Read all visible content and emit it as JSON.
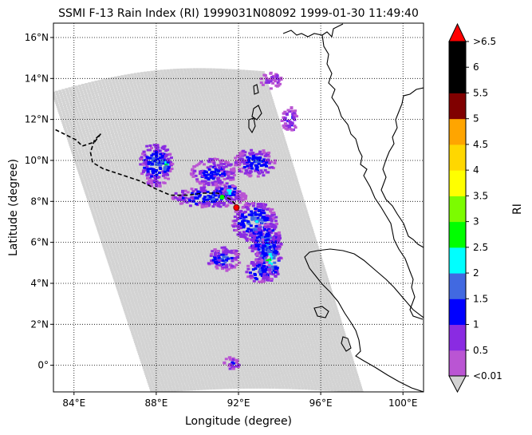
{
  "figure": {
    "title": "SSMI F-13 Rain Index (RI) 1999031N08092 1999-01-30 11:49:40",
    "xlabel": "Longitude (degree)",
    "ylabel": "Latitude (degree)"
  },
  "chart_data": {
    "type": "map",
    "xlim": [
      83,
      101
    ],
    "ylim": [
      -1.3,
      16.7
    ],
    "grid": true,
    "x_ticks": [
      {
        "value": 84,
        "label": "84°E"
      },
      {
        "value": 88,
        "label": "88°E"
      },
      {
        "value": 92,
        "label": "92°E"
      },
      {
        "value": 96,
        "label": "96°E"
      },
      {
        "value": 100,
        "label": "100°E"
      }
    ],
    "y_ticks": [
      {
        "value": 0,
        "label": "0°"
      },
      {
        "value": 2,
        "label": "2°N"
      },
      {
        "value": 4,
        "label": "4°N"
      },
      {
        "value": 6,
        "label": "6°N"
      },
      {
        "value": 8,
        "label": "8°N"
      },
      {
        "value": 10,
        "label": "10°N"
      },
      {
        "value": 12,
        "label": "12°N"
      },
      {
        "value": 14,
        "label": "14°N"
      },
      {
        "value": 16,
        "label": "16°N"
      }
    ],
    "storm_track": [
      [
        83.1,
        11.5
      ],
      [
        84.1,
        11.0
      ],
      [
        84.4,
        10.7
      ],
      [
        85.0,
        10.9
      ],
      [
        85.3,
        11.3
      ],
      [
        85.0,
        11.0
      ],
      [
        84.8,
        10.4
      ],
      [
        84.9,
        9.9
      ],
      [
        85.4,
        9.6
      ],
      [
        86.3,
        9.3
      ],
      [
        87.2,
        9.0
      ],
      [
        88.0,
        8.6
      ],
      [
        88.7,
        8.3
      ],
      [
        89.5,
        8.3
      ],
      [
        90.3,
        8.4
      ],
      [
        91.0,
        8.4
      ],
      [
        91.6,
        8.1
      ],
      [
        92.0,
        7.7
      ]
    ],
    "storm_center": {
      "lon": 91.9,
      "lat": 7.7
    },
    "track_point": {
      "lon": 91.2,
      "lat": 8.2
    },
    "swath": {
      "top_left": [
        83.0,
        13.3
      ],
      "top_right": [
        93.2,
        14.3
      ],
      "bottom_right": [
        98.0,
        -1.3
      ],
      "bottom_left": [
        87.8,
        -1.3
      ],
      "background_color": "#d3d3d3"
    },
    "rain_clusters": [
      {
        "lon": 88.0,
        "lat": 9.8,
        "rx": 0.8,
        "ry": 1.1,
        "level": 1.5
      },
      {
        "lon": 88.4,
        "lat": 9.8,
        "rx": 0.3,
        "ry": 0.4,
        "level": 2.5
      },
      {
        "lon": 90.8,
        "lat": 9.4,
        "rx": 1.1,
        "ry": 0.7,
        "level": 1.2
      },
      {
        "lon": 92.8,
        "lat": 9.9,
        "rx": 1.0,
        "ry": 0.7,
        "level": 1.3
      },
      {
        "lon": 90.6,
        "lat": 8.2,
        "rx": 1.8,
        "ry": 0.5,
        "level": 1.4
      },
      {
        "lon": 91.5,
        "lat": 8.5,
        "rx": 0.5,
        "ry": 0.3,
        "level": 2.2
      },
      {
        "lon": 92.8,
        "lat": 7.0,
        "rx": 1.1,
        "ry": 1.0,
        "level": 1.6
      },
      {
        "lon": 93.3,
        "lat": 6.0,
        "rx": 0.8,
        "ry": 0.9,
        "level": 1.7
      },
      {
        "lon": 93.5,
        "lat": 5.2,
        "rx": 0.6,
        "ry": 1.1,
        "level": 2.1
      },
      {
        "lon": 91.3,
        "lat": 5.2,
        "rx": 0.8,
        "ry": 0.6,
        "level": 1.3
      },
      {
        "lon": 93.0,
        "lat": 4.6,
        "rx": 0.6,
        "ry": 0.6,
        "level": 1.5
      },
      {
        "lon": 94.5,
        "lat": 12.0,
        "rx": 0.4,
        "ry": 0.6,
        "level": 1.0
      },
      {
        "lon": 93.6,
        "lat": 13.9,
        "rx": 0.5,
        "ry": 0.4,
        "level": 0.6
      },
      {
        "lon": 91.7,
        "lat": 0.1,
        "rx": 0.4,
        "ry": 0.3,
        "level": 1.0
      }
    ],
    "colorbar": {
      "label": "RI",
      "levels": [
        "<0.01",
        "0.5",
        "1",
        "1.5",
        "2",
        "2.5",
        "3",
        "3.5",
        "4",
        "4.5",
        "5",
        "5.5",
        "6",
        ">6.5"
      ],
      "colors": [
        "#ba55d3",
        "#8a2be2",
        "#0000ff",
        "#4169e1",
        "#00ffff",
        "#00ff00",
        "#7cfc00",
        "#ffff00",
        "#ffd700",
        "#ffa500",
        "#800000",
        "#000000",
        "#000000"
      ],
      "extend_min_color": "#d3d3d3",
      "extend_max_color": "#ff0000"
    }
  }
}
